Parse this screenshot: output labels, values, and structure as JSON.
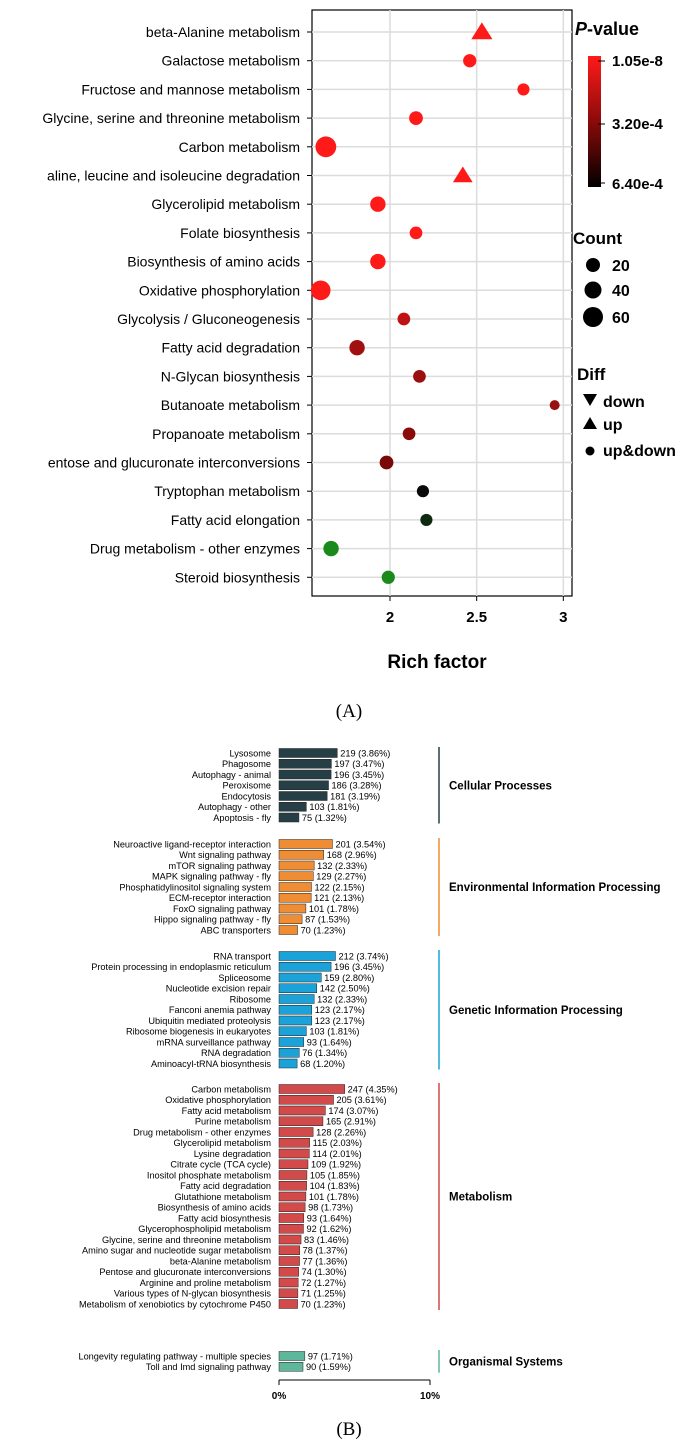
{
  "panel_a": {
    "caption": "(A)",
    "legend": {
      "pvalue_title_p": "P",
      "pvalue_title_rest": "-value",
      "pvalue_ticks": [
        "1.05e-8",
        "3.20e-4",
        "6.40e-4"
      ],
      "count_title": "Count",
      "count_labels": [
        "20",
        "40",
        "60"
      ],
      "diff_title": "Diff",
      "diff_labels": [
        "down",
        "up",
        "up&down"
      ]
    }
  },
  "panel_b": {
    "caption": "(B)"
  },
  "colors": {
    "p_high": "#ff1a1a",
    "p_mid": "#8b0a0a",
    "p_low": "#000000",
    "green": "#1a8a1a",
    "grid": "#dcdcdc",
    "cellular": "#263f47",
    "environmental": "#ef8d34",
    "genetic": "#1ba3d9",
    "metabolism": "#d24a4a",
    "organismal": "#5eb79a"
  },
  "chart_data": [
    {
      "type": "scatter",
      "title": "",
      "xlabel": "Rich factor",
      "ylabel": "",
      "xlim": [
        1.55,
        3.05
      ],
      "xticks": [
        "2",
        "2.5",
        "3"
      ],
      "xtick_values": [
        2,
        2.5,
        3
      ],
      "grid": true,
      "legend_position": "right",
      "points": [
        {
          "term": "beta-Alanine metabolism",
          "x": 2.53,
          "shape": "up",
          "count": 40,
          "color": "#ff1a1a"
        },
        {
          "term": "Galactose metabolism",
          "x": 2.46,
          "shape": "up&down",
          "count": 32,
          "color": "#ff1a1a"
        },
        {
          "term": "Fructose and mannose metabolism",
          "x": 2.77,
          "shape": "up&down",
          "count": 28,
          "color": "#ff1a1a"
        },
        {
          "term": "Glycine, serine and threonine metabolism",
          "x": 2.15,
          "shape": "up&down",
          "count": 34,
          "color": "#ff1a1a"
        },
        {
          "term": "Carbon metabolism",
          "x": 1.63,
          "shape": "up&down",
          "count": 60,
          "color": "#ff1a1a"
        },
        {
          "term": "aline, leucine and isoleucine degradation",
          "x": 2.42,
          "shape": "up",
          "count": 36,
          "color": "#ff1a1a"
        },
        {
          "term": "Glycerolipid metabolism",
          "x": 1.93,
          "shape": "up&down",
          "count": 40,
          "color": "#ff1a1a"
        },
        {
          "term": "Folate biosynthesis",
          "x": 2.15,
          "shape": "up&down",
          "count": 30,
          "color": "#ff1a1a"
        },
        {
          "term": "Biosynthesis of amino acids",
          "x": 1.93,
          "shape": "up&down",
          "count": 40,
          "color": "#ff1a1a"
        },
        {
          "term": "Oxidative phosphorylation",
          "x": 1.6,
          "shape": "up&down",
          "count": 56,
          "color": "#ff1a1a"
        },
        {
          "term": "Glycolysis / Gluconeogenesis",
          "x": 2.08,
          "shape": "up&down",
          "count": 30,
          "color": "#c01212"
        },
        {
          "term": "Fatty acid degradation",
          "x": 1.81,
          "shape": "up&down",
          "count": 40,
          "color": "#a01010"
        },
        {
          "term": "N-Glycan biosynthesis",
          "x": 2.17,
          "shape": "up&down",
          "count": 30,
          "color": "#9a0f0f"
        },
        {
          "term": "Butanoate metabolism",
          "x": 2.95,
          "shape": "up&down",
          "count": 20,
          "color": "#9a0f0f"
        },
        {
          "term": "Propanoate metabolism",
          "x": 2.11,
          "shape": "up&down",
          "count": 30,
          "color": "#8b0a0a"
        },
        {
          "term": "entose and glucuronate interconversions",
          "x": 1.98,
          "shape": "up&down",
          "count": 34,
          "color": "#7a0808"
        },
        {
          "term": "Tryptophan metabolism",
          "x": 2.19,
          "shape": "up&down",
          "count": 28,
          "color": "#0a0a0a"
        },
        {
          "term": "Fatty acid elongation",
          "x": 2.21,
          "shape": "up&down",
          "count": 28,
          "color": "#0f2a0f"
        },
        {
          "term": "Drug metabolism - other enzymes",
          "x": 1.66,
          "shape": "up&down",
          "count": 40,
          "color": "#1a8a1a"
        },
        {
          "term": "Steroid biosynthesis",
          "x": 1.99,
          "shape": "up&down",
          "count": 32,
          "color": "#1a8a1a"
        }
      ]
    },
    {
      "type": "bar",
      "orientation": "horizontal",
      "title": "",
      "xlabel": "",
      "ylabel": "",
      "xlim": [
        0,
        10
      ],
      "xticks": [
        "0%",
        "10%"
      ],
      "groups": [
        {
          "name": "Cellular Processes",
          "color": "#263f47",
          "categories": [
            "Lysosome",
            "Phagosome",
            "Autophagy - animal",
            "Peroxisome",
            "Endocytosis",
            "Autophagy - other",
            "Apoptosis - fly"
          ],
          "values": [
            3.86,
            3.47,
            3.45,
            3.28,
            3.19,
            1.81,
            1.32
          ],
          "labels": [
            "219 (3.86%)",
            "197 (3.47%)",
            "196 (3.45%)",
            "186 (3.28%)",
            "181 (3.19%)",
            "103 (1.81%)",
            "75 (1.32%)"
          ]
        },
        {
          "name": "Environmental Information Processing",
          "color": "#ef8d34",
          "categories": [
            "Neuroactive ligand-receptor interaction",
            "Wnt signaling pathway",
            "mTOR signaling pathway",
            "MAPK signaling pathway - fly",
            "Phosphatidylinositol signaling system",
            "ECM-receptor interaction",
            "FoxO signaling pathway",
            "Hippo signaling pathway - fly",
            "ABC transporters"
          ],
          "values": [
            3.54,
            2.96,
            2.33,
            2.27,
            2.15,
            2.13,
            1.78,
            1.53,
            1.23
          ],
          "labels": [
            "201 (3.54%)",
            "168 (2.96%)",
            "132 (2.33%)",
            "129 (2.27%)",
            "122 (2.15%)",
            "121 (2.13%)",
            "101 (1.78%)",
            "87 (1.53%)",
            "70 (1.23%)"
          ]
        },
        {
          "name": "Genetic Information Processing",
          "color": "#1ba3d9",
          "categories": [
            "RNA transport",
            "Protein processing in endoplasmic reticulum",
            "Spliceosome",
            "Nucleotide excision repair",
            "Ribosome",
            "Fanconi anemia pathway",
            "Ubiquitin mediated proteolysis",
            "Ribosome biogenesis in eukaryotes",
            "mRNA surveillance pathway",
            "RNA degradation",
            "Aminoacyl-tRNA biosynthesis"
          ],
          "values": [
            3.74,
            3.45,
            2.8,
            2.5,
            2.33,
            2.17,
            2.17,
            1.81,
            1.64,
            1.34,
            1.2
          ],
          "labels": [
            "212 (3.74%)",
            "196 (3.45%)",
            "159 (2.80%)",
            "142 (2.50%)",
            "132 (2.33%)",
            "123 (2.17%)",
            "123 (2.17%)",
            "103 (1.81%)",
            "93 (1.64%)",
            "76 (1.34%)",
            "68 (1.20%)"
          ]
        },
        {
          "name": "Metabolism",
          "color": "#d24a4a",
          "categories": [
            "Carbon metabolism",
            "Oxidative phosphorylation",
            "Fatty acid metabolism",
            "Purine metabolism",
            "Drug metabolism - other enzymes",
            "Glycerolipid metabolism",
            "Lysine degradation",
            "Citrate cycle (TCA cycle)",
            "Inositol phosphate metabolism",
            "Fatty acid degradation",
            "Glutathione metabolism",
            "Biosynthesis of amino acids",
            "Fatty acid biosynthesis",
            "Glycerophospholipid metabolism",
            "Glycine, serine and threonine metabolism",
            "Amino sugar and nucleotide sugar metabolism",
            "beta-Alanine metabolism",
            "Pentose and glucuronate interconversions",
            "Arginine and proline metabolism",
            "Various types of N-glycan biosynthesis",
            "Metabolism of xenobiotics by cytochrome P450"
          ],
          "values": [
            4.35,
            3.61,
            3.07,
            2.91,
            2.26,
            2.03,
            2.01,
            1.92,
            1.85,
            1.83,
            1.78,
            1.73,
            1.64,
            1.62,
            1.46,
            1.37,
            1.36,
            1.3,
            1.27,
            1.25,
            1.23
          ],
          "labels": [
            "247 (4.35%)",
            "205 (3.61%)",
            "174 (3.07%)",
            "165 (2.91%)",
            "128 (2.26%)",
            "115 (2.03%)",
            "114 (2.01%)",
            "109 (1.92%)",
            "105 (1.85%)",
            "104 (1.83%)",
            "101 (1.78%)",
            "98 (1.73%)",
            "93 (1.64%)",
            "92 (1.62%)",
            "83 (1.46%)",
            "78 (1.37%)",
            "77 (1.36%)",
            "74 (1.30%)",
            "72 (1.27%)",
            "71 (1.25%)",
            "70 (1.23%)"
          ]
        },
        {
          "name": "Organismal Systems",
          "color": "#5eb79a",
          "categories": [
            "Longevity regulating pathway - multiple species",
            "Toll and Imd signaling pathway"
          ],
          "values": [
            1.71,
            1.59
          ],
          "labels": [
            "97 (1.71%)",
            "90 (1.59%)"
          ]
        }
      ]
    }
  ]
}
